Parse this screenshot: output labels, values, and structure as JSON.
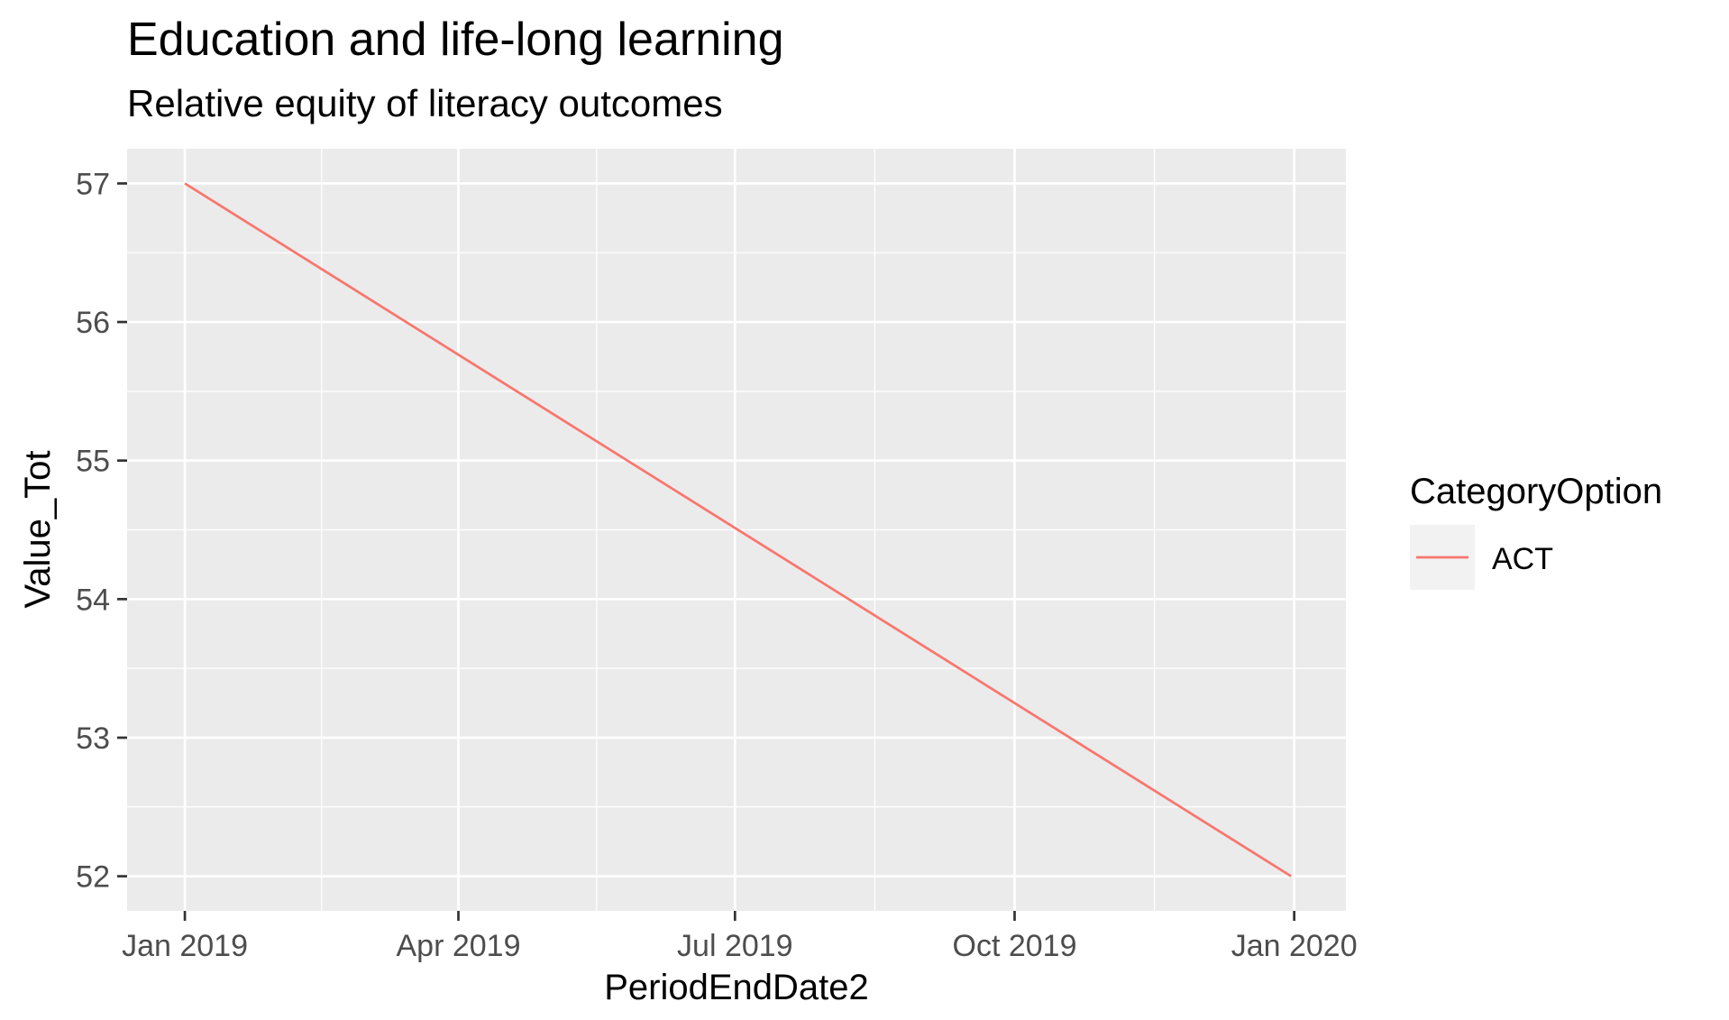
{
  "chart_data": {
    "type": "line",
    "title": "Education and life-long learning",
    "subtitle": "Relative equity of literacy outcomes",
    "xlabel": "PeriodEndDate2",
    "ylabel": "Value_Tot",
    "x": [
      "2019-01-01",
      "2019-12-31"
    ],
    "series": [
      {
        "name": "ACT",
        "x": [
          "2019-01-01",
          "2019-12-31"
        ],
        "values": [
          57,
          52
        ],
        "color": "#F8766D"
      }
    ],
    "x_ticks": [
      {
        "date": "2019-01-01",
        "label": "Jan 2019"
      },
      {
        "date": "2019-04-01",
        "label": "Apr 2019"
      },
      {
        "date": "2019-07-01",
        "label": "Jul 2019"
      },
      {
        "date": "2019-10-01",
        "label": "Oct 2019"
      },
      {
        "date": "2020-01-01",
        "label": "Jan 2020"
      }
    ],
    "y_ticks": [
      52,
      53,
      54,
      55,
      56,
      57
    ],
    "xlim": [
      "2018-12-13",
      "2020-01-18"
    ],
    "ylim": [
      51.75,
      57.25
    ],
    "grid": true,
    "legend": {
      "title": "CategoryOption",
      "position": "right",
      "entries": [
        "ACT"
      ]
    },
    "panel_background": "#EBEBEB",
    "grid_color": "#FFFFFF"
  }
}
